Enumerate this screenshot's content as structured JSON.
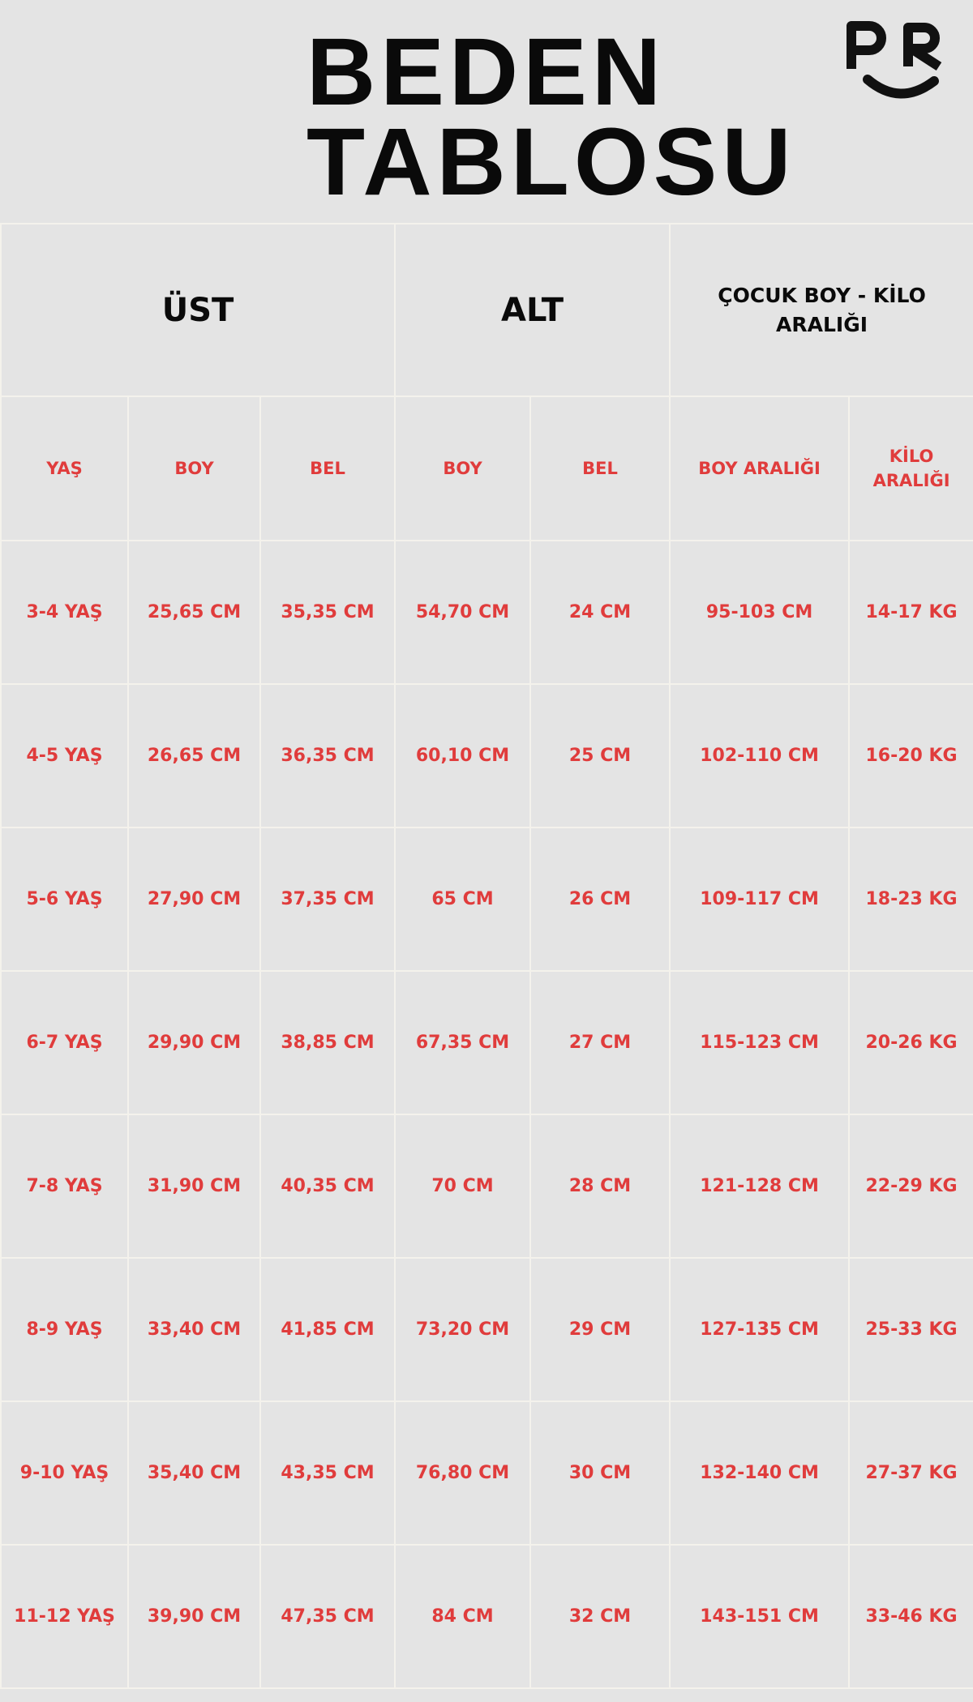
{
  "header": {
    "title": [
      "BEDEN",
      "TABLOSU"
    ]
  },
  "table": {
    "groups": [
      "ÜST",
      "ALT",
      "ÇOCUK BOY - KİLO ARALIĞI"
    ],
    "columns": [
      "YAŞ",
      "BOY",
      "BEL",
      "BOY",
      "BEL",
      "BOY ARALIĞI",
      "KİLO ARALIĞI"
    ],
    "rows": [
      [
        "3-4 YAŞ",
        "25,65 CM",
        "35,35 CM",
        "54,70 CM",
        "24 CM",
        "95-103 CM",
        "14-17 KG"
      ],
      [
        "4-5 YAŞ",
        "26,65 CM",
        "36,35 CM",
        "60,10 CM",
        "25 CM",
        "102-110 CM",
        "16-20 KG"
      ],
      [
        "5-6 YAŞ",
        "27,90 CM",
        "37,35 CM",
        "65 CM",
        "26 CM",
        "109-117 CM",
        "18-23 KG"
      ],
      [
        "6-7 YAŞ",
        "29,90 CM",
        "38,85 CM",
        "67,35 CM",
        "27 CM",
        "115-123 CM",
        "20-26 KG"
      ],
      [
        "7-8 YAŞ",
        "31,90 CM",
        "40,35 CM",
        "70 CM",
        "28 CM",
        "121-128 CM",
        "22-29 KG"
      ],
      [
        "8-9 YAŞ",
        "33,40 CM",
        "41,85 CM",
        "73,20 CM",
        "29 CM",
        "127-135 CM",
        "25-33 KG"
      ],
      [
        "9-10 YAŞ",
        "35,40 CM",
        "43,35 CM",
        "76,80 CM",
        "30 CM",
        "132-140 CM",
        "27-37 KG"
      ],
      [
        "11-12 YAŞ",
        "39,90 CM",
        "47,35 CM",
        "84 CM",
        "32 CM",
        "143-151 CM",
        "33-46 KG"
      ]
    ]
  }
}
